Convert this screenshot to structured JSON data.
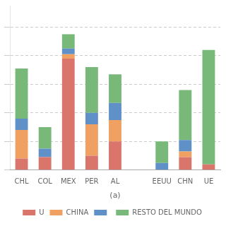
{
  "chart_data": {
    "type": "bar",
    "stacked": true,
    "categories": [
      "CHL",
      "COL",
      "MEX",
      "PER",
      "AL",
      null,
      "EEUU",
      "CHN",
      "UE"
    ],
    "xlabel": "(a)",
    "series": [
      {
        "name": "U",
        "color": "#d9756a",
        "values": [
          0.8,
          0.9,
          7.8,
          1.0,
          2.0,
          0.0,
          0.0,
          0.9,
          0.4
        ]
      },
      {
        "name": "CHINA",
        "color": "#f0a060",
        "values": [
          2.0,
          0.0,
          0.3,
          2.2,
          1.5,
          0.0,
          0.0,
          0.4,
          0.0
        ]
      },
      {
        "color": "#6090c8",
        "values": [
          0.8,
          0.6,
          0.4,
          0.8,
          1.2,
          0.0,
          0.5,
          0.8,
          0.0
        ]
      },
      {
        "name": "RESTO DEL MUNDO",
        "color": "#78b878",
        "values": [
          3.5,
          1.5,
          1.0,
          3.2,
          2.0,
          0.0,
          1.5,
          3.5,
          8.0
        ]
      }
    ],
    "ylim": [
      0,
      11.5
    ],
    "yticks": [
      0,
      2,
      4,
      6,
      8,
      10
    ],
    "grid": true,
    "tick_labels": "x",
    "legend": "bottom"
  }
}
